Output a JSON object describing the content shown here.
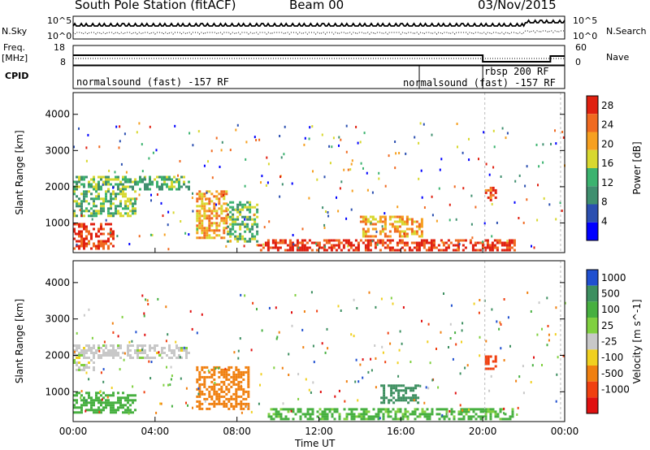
{
  "header": {
    "station": "South Pole Station (fitACF)",
    "beam": "Beam 00",
    "date": "03/Nov/2015"
  },
  "left_labels": {
    "nsky": "N.Sky",
    "freq_top": "Freq.",
    "freq_unit": "[MHz]",
    "cpid": "CPID"
  },
  "right_labels": {
    "nsearch": "N.Search",
    "nave": "Nave"
  },
  "noise_axis": {
    "left_top": "10^5",
    "left_bottom": "10^0",
    "right_top": "10^5",
    "right_bottom": "10^0"
  },
  "freq_axis": {
    "top": "18",
    "bottom": "8",
    "right_top": "60",
    "right_bottom": "0"
  },
  "cpid_segments": [
    {
      "label": "normalsound (fast) -157 RF",
      "start_h": 0.0
    },
    {
      "label": "normalsound (fast) -157 RF",
      "start_h": 16.9
    },
    {
      "label": "rbsp 200 RF",
      "start_h": 20.0
    }
  ],
  "x_axis": {
    "label": "Time UT",
    "ticks": [
      "00:00",
      "04:00",
      "08:00",
      "12:00",
      "16:00",
      "20:00",
      "00:00"
    ],
    "range_h": [
      0,
      24
    ]
  },
  "chart_data": [
    {
      "type": "heatmap",
      "name": "power",
      "ylabel": "Slant Range [km]",
      "yticks": [
        "1000",
        "2000",
        "3000",
        "4000"
      ],
      "ylim_km": [
        180,
        4600
      ],
      "colorbar_label": "Power [dB]",
      "colorbar_ticks": [
        "4",
        "8",
        "12",
        "16",
        "20",
        "24",
        "28"
      ],
      "colorbar_range": [
        0,
        30
      ],
      "colors": [
        "#0000ff",
        "#2b4fb0",
        "#3f8f6f",
        "#3bb36f",
        "#d8d830",
        "#f6a020",
        "#f06a20",
        "#e02010"
      ],
      "regions": [
        {
          "t": [
            0.0,
            5.7
          ],
          "r": [
            1900,
            2300
          ],
          "level": 10
        },
        {
          "t": [
            0.0,
            3.0
          ],
          "r": [
            1200,
            1900
          ],
          "level": 12
        },
        {
          "t": [
            0.0,
            2.0
          ],
          "r": [
            300,
            1000
          ],
          "level": 26
        },
        {
          "t": [
            6.0,
            7.5
          ],
          "r": [
            600,
            1900
          ],
          "level": 18
        },
        {
          "t": [
            7.5,
            9.0
          ],
          "r": [
            500,
            1600
          ],
          "level": 12
        },
        {
          "t": [
            9.0,
            21.5
          ],
          "r": [
            250,
            550
          ],
          "level": 28
        },
        {
          "t": [
            14.0,
            17.0
          ],
          "r": [
            600,
            1200
          ],
          "level": 20
        },
        {
          "t": [
            20.1,
            20.6
          ],
          "r": [
            1600,
            2000
          ],
          "level": 22
        }
      ]
    },
    {
      "type": "heatmap",
      "name": "velocity",
      "ylabel": "Slant Range [km]",
      "yticks": [
        "1000",
        "2000",
        "3000",
        "4000"
      ],
      "ylim_km": [
        180,
        4600
      ],
      "colorbar_label": "Velocity [m s^-1]",
      "colorbar_ticks": [
        "1000",
        "500",
        "100",
        "25",
        "-25",
        "-100",
        "-500",
        "-1000"
      ],
      "colors": [
        "#2050d0",
        "#3d8f60",
        "#47b040",
        "#80d040",
        "#c8c8c8",
        "#f0d020",
        "#f08010",
        "#f04010",
        "#e01010"
      ],
      "regions": [
        {
          "t": [
            0.0,
            5.7
          ],
          "r": [
            1900,
            2300
          ],
          "velocity": 0
        },
        {
          "t": [
            0.0,
            1.0
          ],
          "r": [
            1600,
            1900
          ],
          "velocity": 0
        },
        {
          "t": [
            0.0,
            3.0
          ],
          "r": [
            400,
            1000
          ],
          "velocity": 150
        },
        {
          "t": [
            6.0,
            8.5
          ],
          "r": [
            500,
            1700
          ],
          "velocity": -150
        },
        {
          "t": [
            9.5,
            21.5
          ],
          "r": [
            250,
            550
          ],
          "velocity": 120
        },
        {
          "t": [
            15.0,
            16.8
          ],
          "r": [
            700,
            1200
          ],
          "velocity": 800
        },
        {
          "t": [
            20.1,
            20.6
          ],
          "r": [
            1600,
            2000
          ],
          "velocity": -800
        }
      ]
    }
  ]
}
